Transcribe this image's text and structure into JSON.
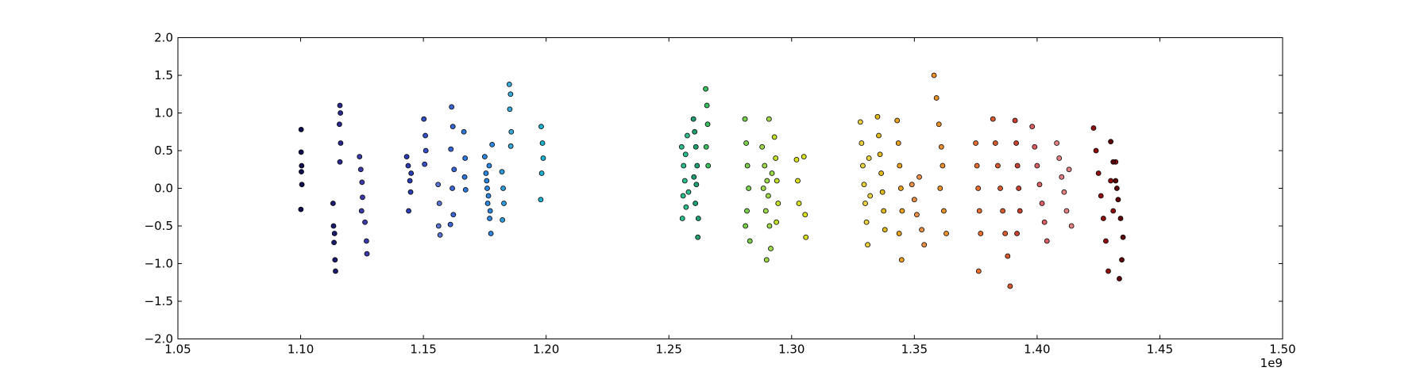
{
  "chart_data": {
    "type": "scatter",
    "title": "",
    "xlabel": "",
    "ylabel": "",
    "xlim": [
      1.05,
      1.5
    ],
    "ylim": [
      -2.0,
      2.0
    ],
    "x_ticks": [
      1.05,
      1.1,
      1.15,
      1.2,
      1.25,
      1.3,
      1.35,
      1.4,
      1.45,
      1.5
    ],
    "x_tick_labels": [
      "1.05",
      "1.10",
      "1.15",
      "1.20",
      "1.25",
      "1.30",
      "1.35",
      "1.40",
      "1.45",
      "1.50"
    ],
    "y_ticks": [
      -2.0,
      -1.5,
      -1.0,
      -0.5,
      0.0,
      0.5,
      1.0,
      1.5,
      2.0
    ],
    "y_tick_labels": [
      "−2.0",
      "−1.5",
      "−1.0",
      "−0.5",
      "0.0",
      "0.5",
      "1.0",
      "1.5",
      "2.0"
    ],
    "x_offset_label": "1e9",
    "grid": false,
    "legend": "none",
    "marker_edge_color": "#000000",
    "series": [
      {
        "color": "#10104f",
        "x": [
          1.1002,
          1.1002,
          1.1003,
          1.1005,
          1.1001,
          1.1004
        ],
        "y": [
          0.78,
          0.48,
          0.22,
          0.05,
          -0.28,
          0.3
        ]
      },
      {
        "color": "#1c1c6e",
        "x": [
          1.1132,
          1.1134,
          1.1136,
          1.114,
          1.1142,
          1.1138
        ],
        "y": [
          -0.2,
          -0.5,
          -0.72,
          -0.95,
          -1.1,
          -0.6
        ]
      },
      {
        "color": "#2a2a8e",
        "x": [
          1.116,
          1.1162,
          1.1158,
          1.1163,
          1.116
        ],
        "y": [
          1.1,
          1.0,
          0.85,
          0.6,
          0.35
        ]
      },
      {
        "color": "#3b3ba8",
        "x": [
          1.124,
          1.1245,
          1.125,
          1.1252,
          1.1248,
          1.1262,
          1.1268,
          1.127
        ],
        "y": [
          0.42,
          0.25,
          0.08,
          -0.12,
          -0.3,
          -0.45,
          -0.7,
          -0.87
        ]
      },
      {
        "color": "#2a3cb0",
        "x": [
          1.1432,
          1.1438,
          1.1445,
          1.1448,
          1.144,
          1.145
        ],
        "y": [
          0.42,
          0.3,
          0.1,
          -0.05,
          -0.3,
          0.2
        ]
      },
      {
        "color": "#3550c4",
        "x": [
          1.1502,
          1.1508,
          1.151,
          1.1505
        ],
        "y": [
          0.92,
          0.7,
          0.5,
          0.32
        ]
      },
      {
        "color": "#5572cc",
        "x": [
          1.156,
          1.1565,
          1.1562,
          1.1568
        ],
        "y": [
          0.05,
          -0.2,
          -0.5,
          -0.62
        ]
      },
      {
        "color": "#3a66d4",
        "x": [
          1.1615,
          1.162,
          1.1612,
          1.1625,
          1.1618,
          1.1622,
          1.161
        ],
        "y": [
          1.08,
          0.82,
          0.52,
          0.25,
          0.0,
          -0.35,
          -0.48
        ]
      },
      {
        "color": "#2f78d8",
        "x": [
          1.1665,
          1.167,
          1.1668,
          1.1672
        ],
        "y": [
          0.75,
          0.4,
          0.15,
          -0.02
        ]
      },
      {
        "color": "#2e86dc",
        "x": [
          1.175,
          1.1755,
          1.176,
          1.1762,
          1.177,
          1.1775,
          1.178,
          1.1765,
          1.1758,
          1.1772,
          1.1768
        ],
        "y": [
          0.42,
          0.2,
          0.0,
          -0.2,
          -0.4,
          -0.6,
          0.58,
          -0.1,
          0.1,
          -0.3,
          0.3
        ]
      },
      {
        "color": "#2f9ad8",
        "x": [
          1.182,
          1.1825,
          1.1828,
          1.1822
        ],
        "y": [
          0.22,
          0.0,
          -0.2,
          -0.42
        ]
      },
      {
        "color": "#3aa8d8",
        "x": [
          1.185,
          1.1855,
          1.1852,
          1.1858,
          1.1856
        ],
        "y": [
          1.38,
          1.25,
          1.05,
          0.75,
          0.56
        ]
      },
      {
        "color": "#1eb0cc",
        "x": [
          1.198,
          1.1985,
          1.1988,
          1.1982,
          1.1978
        ],
        "y": [
          0.82,
          0.6,
          0.4,
          0.2,
          -0.15
        ]
      },
      {
        "color": "#2ebd8a",
        "x": [
          1.2552,
          1.256,
          1.2565,
          1.2558,
          1.257,
          1.2575,
          1.2568,
          1.258,
          1.2555
        ],
        "y": [
          0.55,
          0.3,
          0.1,
          -0.1,
          -0.25,
          0.7,
          0.45,
          -0.05,
          -0.4
        ]
      },
      {
        "color": "#20a070",
        "x": [
          1.26,
          1.2605,
          1.261,
          1.2615,
          1.2612,
          1.2608,
          1.262,
          1.2618,
          1.2602
        ],
        "y": [
          0.92,
          0.75,
          0.55,
          0.3,
          0.05,
          -0.2,
          -0.4,
          -0.65,
          0.15
        ]
      },
      {
        "color": "#3ac060",
        "x": [
          1.265,
          1.2655,
          1.2658,
          1.2652,
          1.266
        ],
        "y": [
          1.32,
          1.1,
          0.85,
          0.55,
          0.3
        ]
      },
      {
        "color": "#7ad04a",
        "x": [
          1.281,
          1.2815,
          1.282,
          1.2825,
          1.2818,
          1.2812,
          1.283
        ],
        "y": [
          0.92,
          0.6,
          0.3,
          0.0,
          -0.3,
          -0.5,
          -0.7
        ]
      },
      {
        "color": "#9cd84a",
        "x": [
          1.288,
          1.289,
          1.29,
          1.2905,
          1.2895,
          1.291,
          1.2915,
          1.292,
          1.2885,
          1.2898,
          1.2908
        ],
        "y": [
          0.55,
          0.3,
          0.1,
          -0.1,
          -0.3,
          -0.5,
          -0.8,
          0.2,
          0.0,
          -0.95,
          0.92
        ]
      },
      {
        "color": "#c0e02a",
        "x": [
          1.293,
          1.2935,
          1.294,
          1.2945,
          1.2938
        ],
        "y": [
          0.68,
          0.4,
          0.1,
          -0.2,
          -0.45
        ]
      },
      {
        "color": "#d8e020",
        "x": [
          1.302,
          1.3025,
          1.303,
          1.305,
          1.3055,
          1.3058
        ],
        "y": [
          0.38,
          0.1,
          -0.2,
          0.42,
          -0.35,
          -0.65
        ]
      },
      {
        "color": "#e8d040",
        "x": [
          1.328,
          1.3285,
          1.329,
          1.3295,
          1.33,
          1.3305,
          1.331,
          1.3315,
          1.332
        ],
        "y": [
          0.88,
          0.6,
          0.3,
          0.05,
          -0.2,
          -0.45,
          -0.75,
          0.4,
          -0.1
        ]
      },
      {
        "color": "#e0b820",
        "x": [
          1.335,
          1.3355,
          1.336,
          1.3365,
          1.337,
          1.3375,
          1.338
        ],
        "y": [
          0.95,
          0.7,
          0.45,
          0.2,
          -0.05,
          -0.3,
          -0.55
        ]
      },
      {
        "color": "#e8a020",
        "x": [
          1.343,
          1.3435,
          1.344,
          1.3445,
          1.345,
          1.3438,
          1.3448
        ],
        "y": [
          0.9,
          0.6,
          0.3,
          0.0,
          -0.3,
          -0.6,
          -0.95
        ]
      },
      {
        "color": "#e89048",
        "x": [
          1.349,
          1.35,
          1.351,
          1.352,
          1.353,
          1.354
        ],
        "y": [
          0.05,
          -0.15,
          -0.35,
          0.15,
          -0.55,
          -0.75
        ]
      },
      {
        "color": "#e8902a",
        "x": [
          1.358,
          1.359,
          1.36,
          1.361,
          1.3615,
          1.3605,
          1.362,
          1.363
        ],
        "y": [
          1.5,
          1.2,
          0.85,
          0.55,
          0.3,
          0.0,
          -0.3,
          -0.6
        ]
      },
      {
        "color": "#e86e30",
        "x": [
          1.375,
          1.3755,
          1.376,
          1.3765,
          1.377,
          1.3762
        ],
        "y": [
          0.6,
          0.3,
          0.0,
          -0.3,
          -0.6,
          -1.1
        ]
      },
      {
        "color": "#d85a30",
        "x": [
          1.382,
          1.383,
          1.384,
          1.385,
          1.386,
          1.387,
          1.388,
          1.389
        ],
        "y": [
          0.92,
          0.6,
          0.3,
          0.0,
          -0.3,
          -0.6,
          -0.9,
          -1.3
        ]
      },
      {
        "color": "#c84030",
        "x": [
          1.391,
          1.3915,
          1.392,
          1.3925,
          1.393,
          1.3918
        ],
        "y": [
          0.9,
          0.6,
          0.3,
          0.0,
          -0.3,
          -0.6
        ]
      },
      {
        "color": "#d86060",
        "x": [
          1.398,
          1.399,
          1.4,
          1.401,
          1.402,
          1.403,
          1.404
        ],
        "y": [
          0.82,
          0.55,
          0.3,
          0.05,
          -0.2,
          -0.45,
          -0.7
        ]
      },
      {
        "color": "#e08080",
        "x": [
          1.408,
          1.409,
          1.41,
          1.411,
          1.412,
          1.413,
          1.414
        ],
        "y": [
          0.6,
          0.4,
          0.15,
          -0.05,
          -0.3,
          0.25,
          -0.5
        ]
      },
      {
        "color": "#8c1010",
        "x": [
          1.423,
          1.424,
          1.425,
          1.426,
          1.427,
          1.428,
          1.429,
          1.43,
          1.431,
          1.432
        ],
        "y": [
          0.8,
          0.5,
          0.2,
          -0.1,
          -0.4,
          -0.7,
          -1.1,
          0.1,
          -0.3,
          0.35
        ]
      },
      {
        "color": "#5a0808",
        "x": [
          1.43,
          1.431,
          1.432,
          1.433,
          1.434,
          1.435,
          1.4345,
          1.4335,
          1.4325
        ],
        "y": [
          0.62,
          0.35,
          0.1,
          -0.15,
          -0.4,
          -0.65,
          -0.95,
          -1.2,
          0.0
        ]
      }
    ]
  }
}
